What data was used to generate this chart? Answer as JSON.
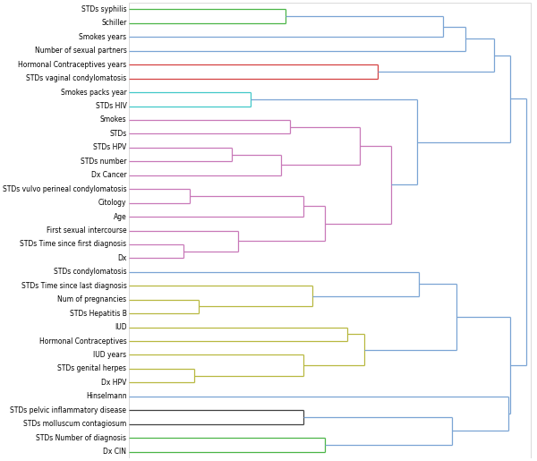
{
  "labels": [
    "STDs syphilis",
    "Schiller",
    "Smokes years",
    "Number of sexual partners",
    "Hormonal Contraceptives years",
    "STDs vaginal condylomatosis",
    "Smokes packs year",
    "STDs HIV",
    "Smokes",
    "STDs",
    "STDs HPV",
    "STDs number",
    "Dx Cancer",
    "STDs vulvo perineal condylomatosis",
    "Citology",
    "Age",
    "First sexual intercourse",
    "STDs Time since first diagnosis",
    "Dx",
    "STDs condylomatosis",
    "STDs Time since last diagnosis",
    "Num of pregnancies",
    "STDs Hepatitis B",
    "IUD",
    "Hormonal Contraceptives",
    "IUD years",
    "STDs genital herpes",
    "Dx HPV",
    "Hinselmann",
    "STDs pelvic inflammatory disease",
    "STDs molluscum contagiosum",
    "STDs Number of diagnosis",
    "Dx CIN"
  ],
  "C_green": "#4ab547",
  "C_blue": "#7aa4d4",
  "C_red": "#d44040",
  "C_cyan": "#40c8c8",
  "C_magenta": "#c878b8",
  "C_olive": "#b8b840",
  "C_black": "#404040",
  "figsize": [
    6.0,
    5.15
  ],
  "dpi": 100,
  "label_fontsize": 5.5
}
